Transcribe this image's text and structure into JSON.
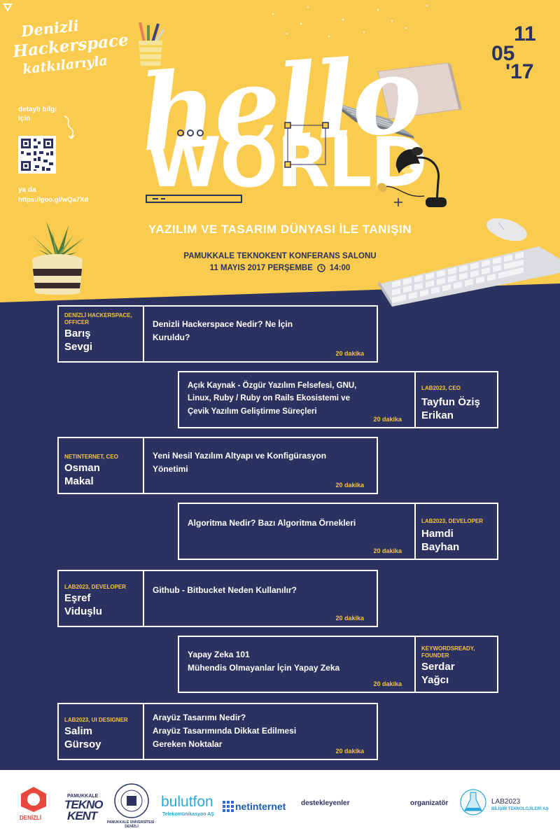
{
  "header": {
    "org_line1": "Denizli",
    "org_line2": "Hackerspace",
    "org_line3": "katkılarıyla",
    "info_label": "detaylı bilgi\niçin",
    "or_label": "ya da",
    "short_url": "https://goo.gl/wQa7Xd"
  },
  "date_badge": {
    "day": "11",
    "month": "05",
    "year": "'17"
  },
  "hero": {
    "line1": "hello",
    "line2": "WORLD"
  },
  "subtitle": "YAZILIM VE TASARIM DÜNYASI İLE TANIŞIN",
  "venue": {
    "place": "PAMUKKALE TEKNOKENT KONFERANS SALONU",
    "date": "11 MAYIS 2017 PERŞEMBE",
    "time": "14:00"
  },
  "sessions": [
    {
      "role": "DENİZLİ HACKERSPACE, OFFICER",
      "name": "Barış Sevgi",
      "topic": "Denizli Hackerspace Nedir?  Ne İçin\nKuruldu?",
      "duration": "20 dakika"
    },
    {
      "role": "LAB2023, CEO",
      "name": "Tayfun Öziş Erikan",
      "topic": "Açık Kaynak - Özgür Yazılım Felsefesi, GNU,\nLinux, Ruby / Ruby on Rails Ekosistemi ve\nÇevik Yazılım Geliştirme Süreçleri",
      "duration": "20 dakika"
    },
    {
      "role": "NETINTERNET, CEO",
      "name": "Osman Makal",
      "topic": "Yeni Nesil Yazılım Altyapı ve Konfigürasyon\nYönetimi",
      "duration": "20 dakika"
    },
    {
      "role": "LAB2023, DEVELOPER",
      "name": "Hamdi Bayhan",
      "topic": "Algoritma Nedir? Bazı Algoritma Örnekleri",
      "duration": "20 dakika"
    },
    {
      "role": "LAB2023, DEVELOPER",
      "name": "Eşref Viduşlu",
      "topic": "Github - Bitbucket Neden Kullanılır?",
      "duration": "20 dakika"
    },
    {
      "role": "KEYWORDSREADY, FOUNDER",
      "name": "Serdar Yağcı",
      "topic": "Yapay Zeka 101\nMühendis Olmayanlar İçin Yapay Zeka",
      "duration": "20 dakika"
    },
    {
      "role": "LAB2023, UI DESIGNER",
      "name": "Salim Gürsoy",
      "topic": "Arayüz Tasarımı Nedir?\nArayüz Tasarımında Dikkat Edilmesi\nGereken Noktalar",
      "duration": "20 dakika"
    }
  ],
  "footer": {
    "dhs_text": "DENİZLİ",
    "teknokent_top": "PAMUKKALE",
    "teknokent_main": "TEKNO",
    "teknokent_main2": "KENT",
    "university_text": "PAMUKKALE ÜNİVERSİTESİ · DENİZLİ",
    "bulutfon_main": "bulutfon",
    "bulutfon_sub": "Telekomünikasyon AŞ",
    "netinternet": "netinternet",
    "supporters_label": "destekleyenler",
    "organizer_label": "organizatör",
    "lab_main": "LAB2023",
    "lab_sub": "BİLİŞİM TEKNOLOJİLERİ AŞ"
  },
  "colors": {
    "navy": "#2b3260",
    "yellow": "#f9cb4f",
    "accent_yellow": "#f5c242"
  },
  "icons": [
    "pencil-cup-icon",
    "qr-code-icon",
    "laptop-icon",
    "desk-lamp-icon",
    "cactus-pot-icon",
    "keyboard-icon",
    "mouse-icon",
    "clock-icon"
  ]
}
